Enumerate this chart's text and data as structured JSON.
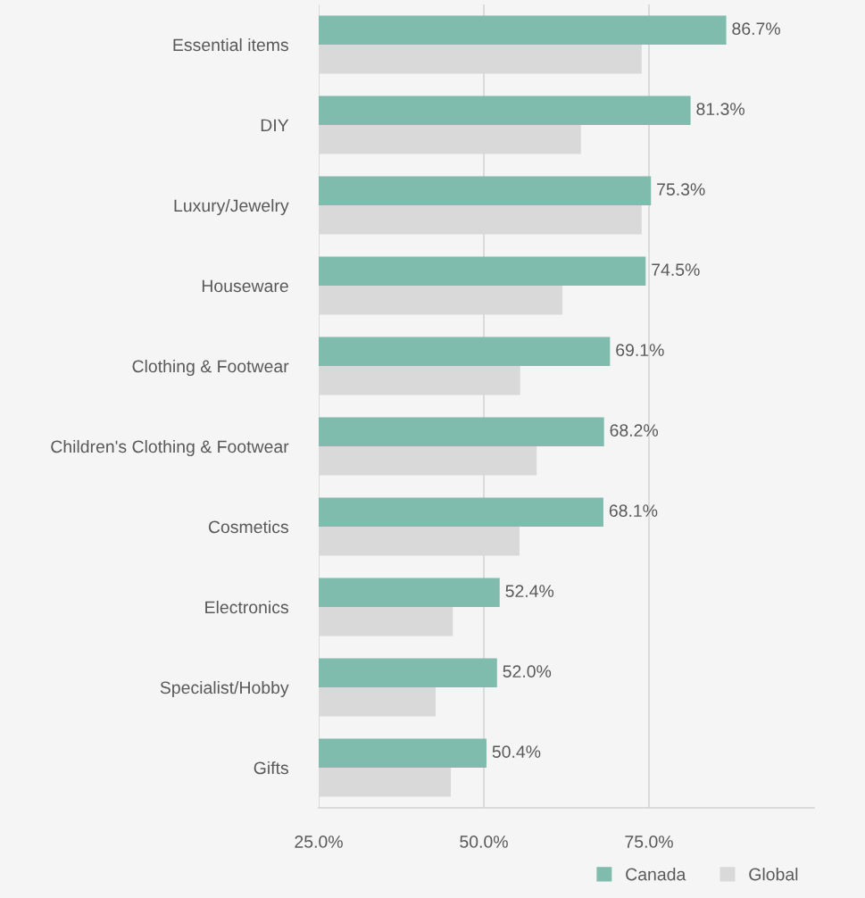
{
  "chart_data": {
    "type": "bar",
    "orientation": "horizontal",
    "categories": [
      "Essential items",
      "DIY",
      "Luxury/Jewelry",
      "Houseware",
      "Clothing & Footwear",
      "Children's Clothing & Footwear",
      "Cosmetics",
      "Electronics",
      "Specialist/Hobby",
      "Gifts"
    ],
    "series": [
      {
        "name": "Canada",
        "color": "#80bcad",
        "values": [
          86.7,
          81.3,
          75.3,
          74.5,
          69.1,
          68.2,
          68.1,
          52.4,
          52.0,
          50.4
        ],
        "value_labels": [
          "86.7%",
          "81.3%",
          "75.3%",
          "74.5%",
          "69.1%",
          "68.2%",
          "68.1%",
          "52.4%",
          "52.0%",
          "50.4%"
        ]
      },
      {
        "name": "Global",
        "color": "#d9d9d9",
        "values": [
          73.9,
          64.7,
          73.9,
          61.9,
          55.5,
          58.0,
          55.4,
          45.3,
          42.7,
          45.0
        ]
      }
    ],
    "xlim": [
      25,
      100
    ],
    "xticks": [
      {
        "value": 25,
        "label": "25.0%"
      },
      {
        "value": 50,
        "label": "50.0%"
      },
      {
        "value": 75,
        "label": "75.0%"
      }
    ],
    "grid": "x",
    "legend": "bottom right"
  }
}
